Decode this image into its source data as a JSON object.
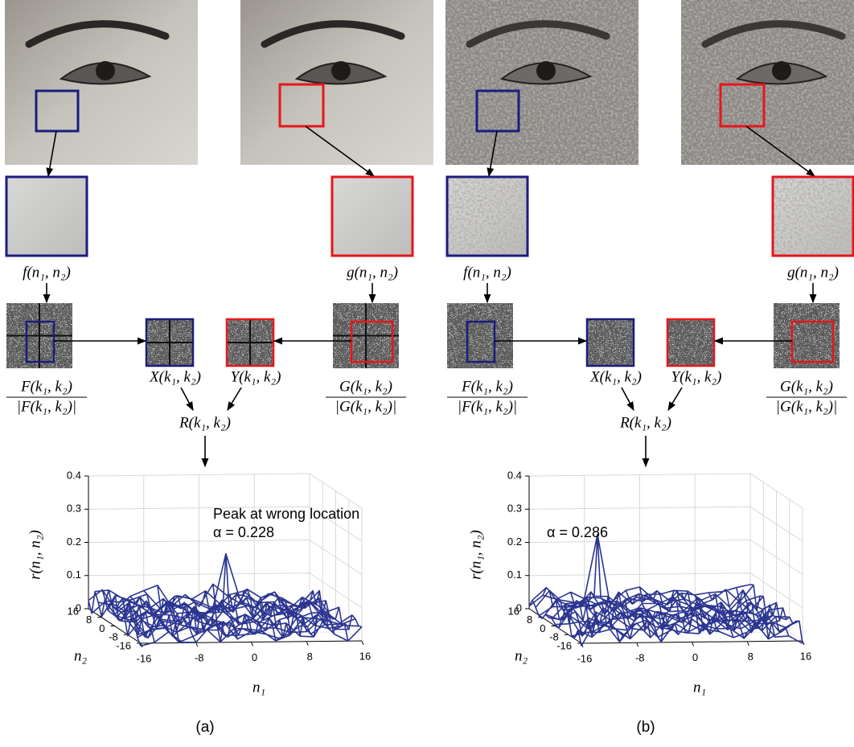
{
  "panels": [
    {
      "caption": "(a)",
      "f_label": "f(n₁, n₂)",
      "g_label": "g(n₁, n₂)",
      "F_num": "F(k₁, k₂)",
      "F_den": "|F(k₁, k₂)|",
      "G_num": "G(k₁, k₂)",
      "G_den": "|G(k₁, k₂)|",
      "X_label": "X(k₁, k₂)",
      "Y_label": "Y(k₁, k₂)",
      "R_label": "R(k₁, k₂)",
      "plot": {
        "z_label": "r(n₁, n₂)",
        "x_label": "n₁",
        "y_label": "n₂",
        "zticks": [
          0,
          0.1,
          0.2,
          0.3,
          0.4
        ],
        "xticks": [
          -16,
          -8,
          0,
          8,
          16
        ],
        "yticks": [
          -16,
          -8,
          0,
          8,
          16
        ],
        "annotations": [
          "Peak at wrong location",
          "α = 0.228"
        ]
      }
    },
    {
      "caption": "(b)",
      "f_label": "f(n₁, n₂)",
      "g_label": "g(n₁, n₂)",
      "F_num": "F(k₁, k₂)",
      "F_den": "|F(k₁, k₂)|",
      "G_num": "G(k₁, k₂)",
      "G_den": "|G(k₁, k₂)|",
      "X_label": "X(k₁, k₂)",
      "Y_label": "Y(k₁, k₂)",
      "R_label": "R(k₁, k₂)",
      "plot": {
        "z_label": "r(n₁, n₂)",
        "x_label": "n₁",
        "y_label": "n₂",
        "zticks": [
          0,
          0.1,
          0.2,
          0.3,
          0.4
        ],
        "xticks": [
          -16,
          -8,
          0,
          8,
          16
        ],
        "yticks": [
          -16,
          -8,
          0,
          8,
          16
        ],
        "annotations": [
          "α = 0.286"
        ]
      }
    }
  ]
}
